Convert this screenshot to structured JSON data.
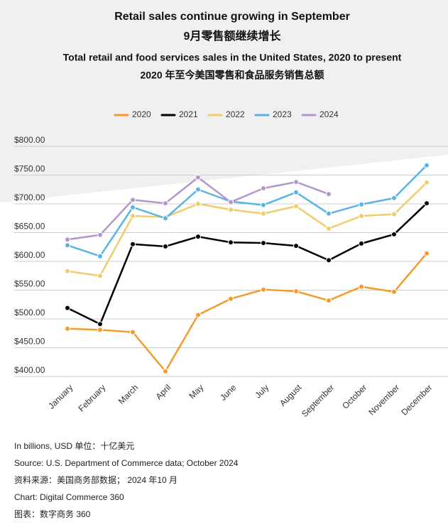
{
  "chart_data": {
    "type": "line",
    "title": "Retail sales continue growing in September",
    "title_zh": "9月零售额继续增长",
    "subtitle": "Total retail and food services sales in the United States, 2020 to present",
    "subtitle_zh": "2020 年至今美国零售和食品服务销售总额",
    "categories": [
      "January",
      "February",
      "March",
      "April",
      "May",
      "June",
      "July",
      "August",
      "September",
      "October",
      "November",
      "December"
    ],
    "series": [
      {
        "name": "2020",
        "color": "#f39c2c",
        "values": [
          483,
          481,
          477,
          409,
          507,
          535,
          551,
          548,
          532,
          556,
          547,
          614
        ]
      },
      {
        "name": "2021",
        "color": "#000000",
        "values": [
          519,
          491,
          630,
          626,
          643,
          633,
          632,
          627,
          602,
          631,
          647,
          701
        ]
      },
      {
        "name": "2022",
        "color": "#f1cc6d",
        "values": [
          583,
          575,
          679,
          677,
          700,
          690,
          683,
          696,
          657,
          679,
          682,
          737
        ]
      },
      {
        "name": "2023",
        "color": "#5ab4e0",
        "values": [
          628,
          609,
          694,
          675,
          725,
          704,
          698,
          720,
          683,
          699,
          710,
          767
        ]
      },
      {
        "name": "2024",
        "color": "#b396cc",
        "values": [
          638,
          646,
          707,
          701,
          746,
          703,
          727,
          738,
          717,
          null,
          null,
          null
        ]
      }
    ],
    "ylim": [
      400,
      800
    ],
    "yticks": [
      {
        "value": 400,
        "label": "$400.00"
      },
      {
        "value": 450,
        "label": "$450.00"
      },
      {
        "value": 500,
        "label": "$500.00"
      },
      {
        "value": 550,
        "label": "$550.00"
      },
      {
        "value": 600,
        "label": "$600.00"
      },
      {
        "value": 650,
        "label": "$650.00"
      },
      {
        "value": 700,
        "label": "$700.00"
      },
      {
        "value": 750,
        "label": "$750.00"
      },
      {
        "value": 800,
        "label": "$800.00"
      }
    ],
    "grid": true,
    "legend": "top",
    "notes": [
      "In billions, USD 单位：十亿美元",
      "Source: U.S. Department of Commerce data; October 2024",
      "资料来源：美国商务部数据； 2024 年10 月",
      "Chart: Digital Commerce 360",
      "图表：数字商务 360"
    ]
  }
}
